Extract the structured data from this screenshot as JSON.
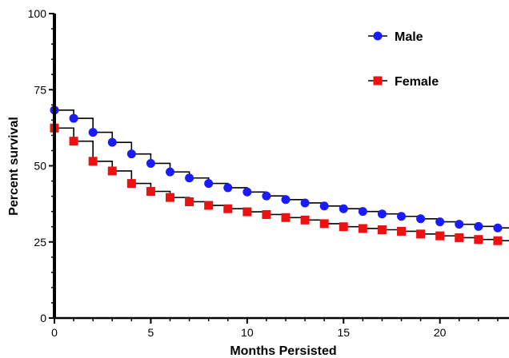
{
  "chart_data": {
    "type": "line",
    "subtype": "kaplan-meier step",
    "title": "",
    "xlabel": "Months Persisted",
    "ylabel": "Percent survival",
    "xlim": [
      0,
      24
    ],
    "ylim": [
      0,
      100
    ],
    "x_ticks": [
      "0",
      "5",
      "10",
      "15",
      "20"
    ],
    "y_ticks": [
      "0",
      "25",
      "50",
      "75",
      "100"
    ],
    "grid": false,
    "legend_position": "top-right",
    "x": [
      0,
      1,
      2,
      3,
      4,
      5,
      6,
      7,
      8,
      9,
      10,
      11,
      12,
      13,
      14,
      15,
      16,
      17,
      18,
      19,
      20,
      21,
      22,
      23,
      24
    ],
    "series": [
      {
        "name": "Male",
        "color": "#1a1aff",
        "marker": "circle",
        "values": [
          68.3,
          65.6,
          61.0,
          57.7,
          53.9,
          50.8,
          48.0,
          46.0,
          44.2,
          42.8,
          41.4,
          40.1,
          38.9,
          37.8,
          36.8,
          35.9,
          35.0,
          34.2,
          33.4,
          32.6,
          31.6,
          30.8,
          30.1,
          29.6,
          29.3
        ]
      },
      {
        "name": "Female",
        "color": "#ee1111",
        "marker": "square",
        "values": [
          62.4,
          58.1,
          51.5,
          48.3,
          44.2,
          41.6,
          39.6,
          38.2,
          37.0,
          35.9,
          34.9,
          34.0,
          33.0,
          32.2,
          31.0,
          30.0,
          29.4,
          29.0,
          28.5,
          27.6,
          27.0,
          26.4,
          25.8,
          25.4,
          24.9
        ]
      }
    ]
  }
}
